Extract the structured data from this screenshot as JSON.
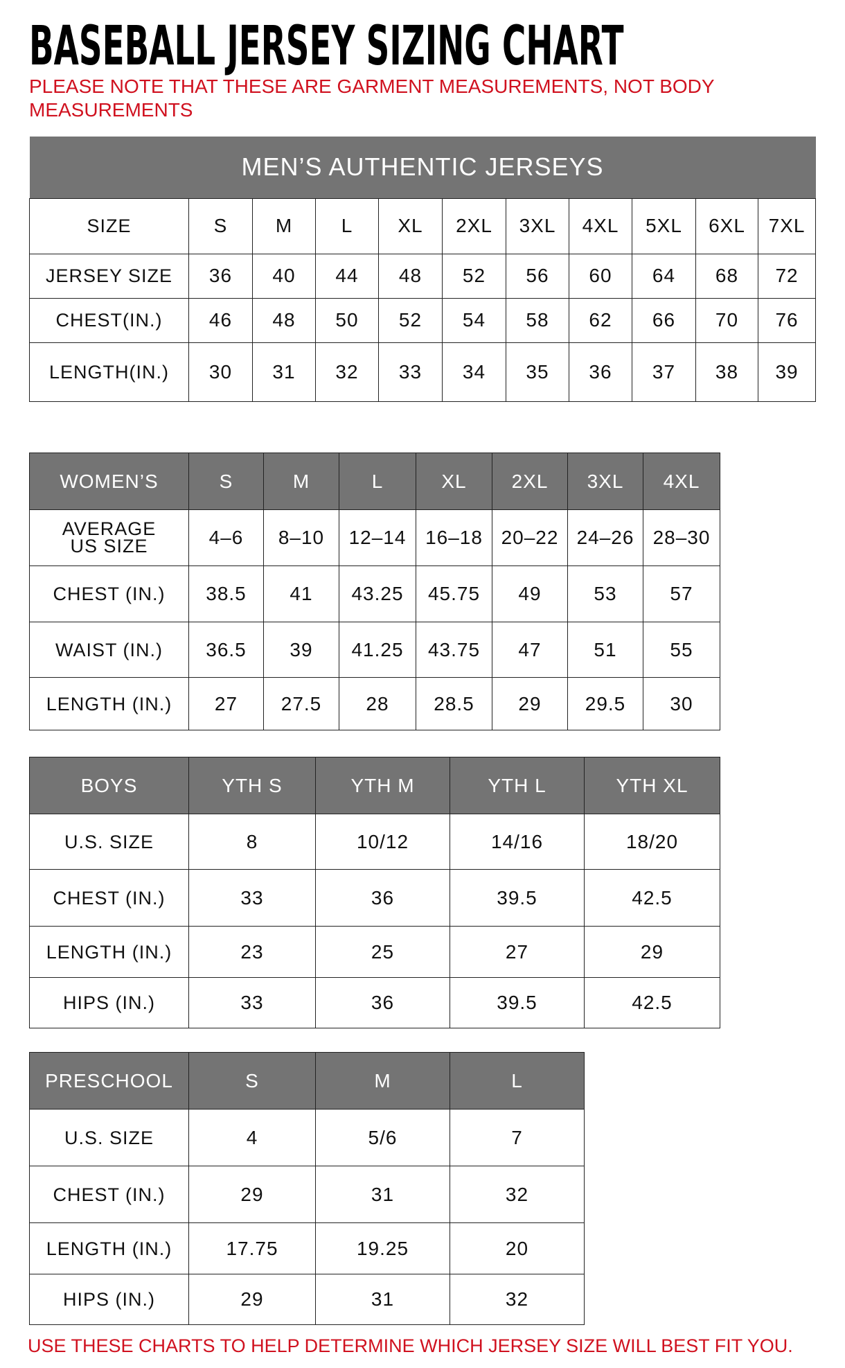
{
  "title": "BASEBALL JERSEY SIZING CHART",
  "note": "PLEASE NOTE THAT THESE ARE GARMENT MEASUREMENTS, NOT BODY MEASUREMENTS",
  "footer": "USE THESE CHARTS TO HELP DETERMINE WHICH JERSEY SIZE WILL BEST FIT YOU.",
  "colors": {
    "header_bg": "#747474",
    "accent_red": "#d0111f"
  },
  "tables": [
    {
      "id": "mens",
      "banner": "MEN’S AUTHENTIC JERSEYS",
      "header_style": "plain",
      "header": [
        "SIZE",
        "S",
        "M",
        "L",
        "XL",
        "2XL",
        "3XL",
        "4XL",
        "5XL",
        "6XL",
        "7XL"
      ],
      "rows": [
        [
          "JERSEY SIZE",
          "36",
          "40",
          "44",
          "48",
          "52",
          "56",
          "60",
          "64",
          "68",
          "72"
        ],
        [
          "CHEST(IN.)",
          "46",
          "48",
          "50",
          "52",
          "54",
          "58",
          "62",
          "66",
          "70",
          "76"
        ],
        [
          "LENGTH(IN.)",
          "30",
          "31",
          "32",
          "33",
          "34",
          "35",
          "36",
          "37",
          "38",
          "39"
        ]
      ]
    },
    {
      "id": "womens",
      "header_style": "gray",
      "header": [
        "WOMEN’S",
        "S",
        "M",
        "L",
        "XL",
        "2XL",
        "3XL",
        "4XL"
      ],
      "rows": [
        [
          "AVERAGE US SIZE",
          "4–6",
          "8–10",
          "12–14",
          "16–18",
          "20–22",
          "24–26",
          "28–30"
        ],
        [
          "CHEST (IN.)",
          "38.5",
          "41",
          "43.25",
          "45.75",
          "49",
          "53",
          "57"
        ],
        [
          "WAIST (IN.)",
          "36.5",
          "39",
          "41.25",
          "43.75",
          "47",
          "51",
          "55"
        ],
        [
          "LENGTH (IN.)",
          "27",
          "27.5",
          "28",
          "28.5",
          "29",
          "29.5",
          "30"
        ]
      ]
    },
    {
      "id": "boys",
      "header_style": "gray",
      "header": [
        "BOYS",
        "YTH S",
        "YTH M",
        "YTH L",
        "YTH XL"
      ],
      "rows": [
        [
          "U.S. SIZE",
          "8",
          "10/12",
          "14/16",
          "18/20"
        ],
        [
          "CHEST (IN.)",
          "33",
          "36",
          "39.5",
          "42.5"
        ],
        [
          "LENGTH (IN.)",
          "23",
          "25",
          "27",
          "29"
        ],
        [
          "HIPS (IN.)",
          "33",
          "36",
          "39.5",
          "42.5"
        ]
      ]
    },
    {
      "id": "preschool",
      "header_style": "gray",
      "header": [
        "PRESCHOOL",
        "S",
        "M",
        "L"
      ],
      "rows": [
        [
          "U.S. SIZE",
          "4",
          "5/6",
          "7"
        ],
        [
          "CHEST (IN.)",
          "29",
          "31",
          "32"
        ],
        [
          "LENGTH (IN.)",
          "17.75",
          "19.25",
          "20"
        ],
        [
          "HIPS (IN.)",
          "29",
          "31",
          "32"
        ]
      ]
    }
  ]
}
